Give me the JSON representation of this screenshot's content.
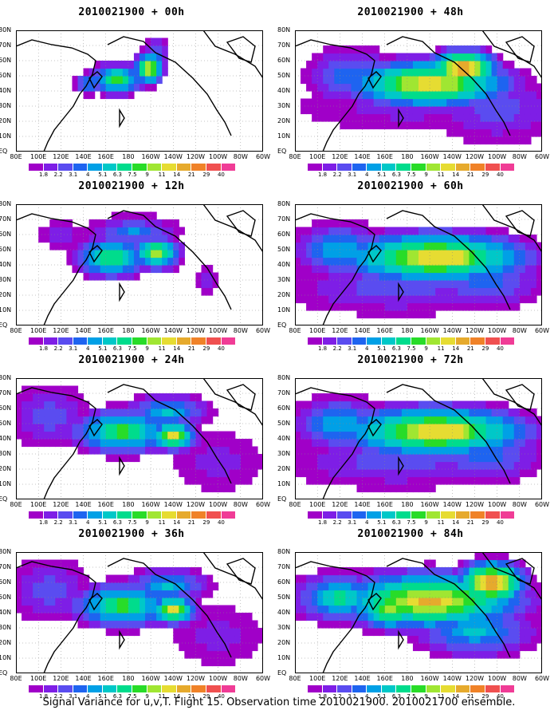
{
  "caption": "Signal Variance for u,v,T. Flight 15. Observation time 2010021900. 2010021700 ensemble.",
  "lat_labels": [
    "80N",
    "70N",
    "60N",
    "50N",
    "40N",
    "30N",
    "20N",
    "10N",
    "EQ"
  ],
  "lon_labels": [
    "80E",
    "100E",
    "120E",
    "140E",
    "160E",
    "180",
    "160W",
    "140W",
    "120W",
    "100W",
    "80W",
    "60W"
  ],
  "colorbar": {
    "labels": [
      "1.8",
      "2.2",
      "3.1",
      "4",
      "5.1",
      "6.3",
      "7.5",
      "9",
      "11",
      "14",
      "21",
      "29",
      "40"
    ],
    "colors": [
      "#a000c8",
      "#7e1ee6",
      "#5a4cf0",
      "#1e64f0",
      "#00a0e6",
      "#00c8c8",
      "#00dc8c",
      "#28dc28",
      "#a0e632",
      "#e6dc32",
      "#e6aa2d",
      "#f08228",
      "#f05050",
      "#f03c96"
    ]
  },
  "panels": [
    {
      "title": "2010021900 + 00h",
      "field": 0
    },
    {
      "title": "2010021900 + 48h",
      "field": 3
    },
    {
      "title": "2010021900 + 12h",
      "field": 1
    },
    {
      "title": "2010021900 + 60h",
      "field": 4
    },
    {
      "title": "2010021900 + 24h",
      "field": 2
    },
    {
      "title": "2010021900 + 72h",
      "field": 4
    },
    {
      "title": "2010021900 + 36h",
      "field": 2
    },
    {
      "title": "2010021900 + 84h",
      "field": 5
    }
  ],
  "chart_data": {
    "type": "heatmap",
    "title": "Signal Variance for u,v,T. Flight 15. Observation time 2010021900. 2010021700 ensemble.",
    "x_axis": {
      "labels": [
        "80E",
        "100E",
        "120E",
        "140E",
        "160E",
        "180",
        "160W",
        "140W",
        "120W",
        "100W",
        "80W",
        "60W"
      ],
      "range": [
        "80E",
        "60W"
      ]
    },
    "y_axis": {
      "labels": [
        "EQ",
        "10N",
        "20N",
        "30N",
        "40N",
        "50N",
        "60N",
        "70N",
        "80N"
      ],
      "range": [
        "EQ",
        "80N"
      ]
    },
    "contour_levels": [
      1.8,
      2.2,
      3.1,
      4,
      5.1,
      6.3,
      7.5,
      9,
      11,
      14,
      21,
      29,
      40
    ],
    "panels": [
      "2010021900 + 00h",
      "2010021900 + 12h",
      "2010021900 + 24h",
      "2010021900 + 36h",
      "2010021900 + 48h",
      "2010021900 + 60h",
      "2010021900 + 72h",
      "2010021900 + 84h"
    ]
  }
}
